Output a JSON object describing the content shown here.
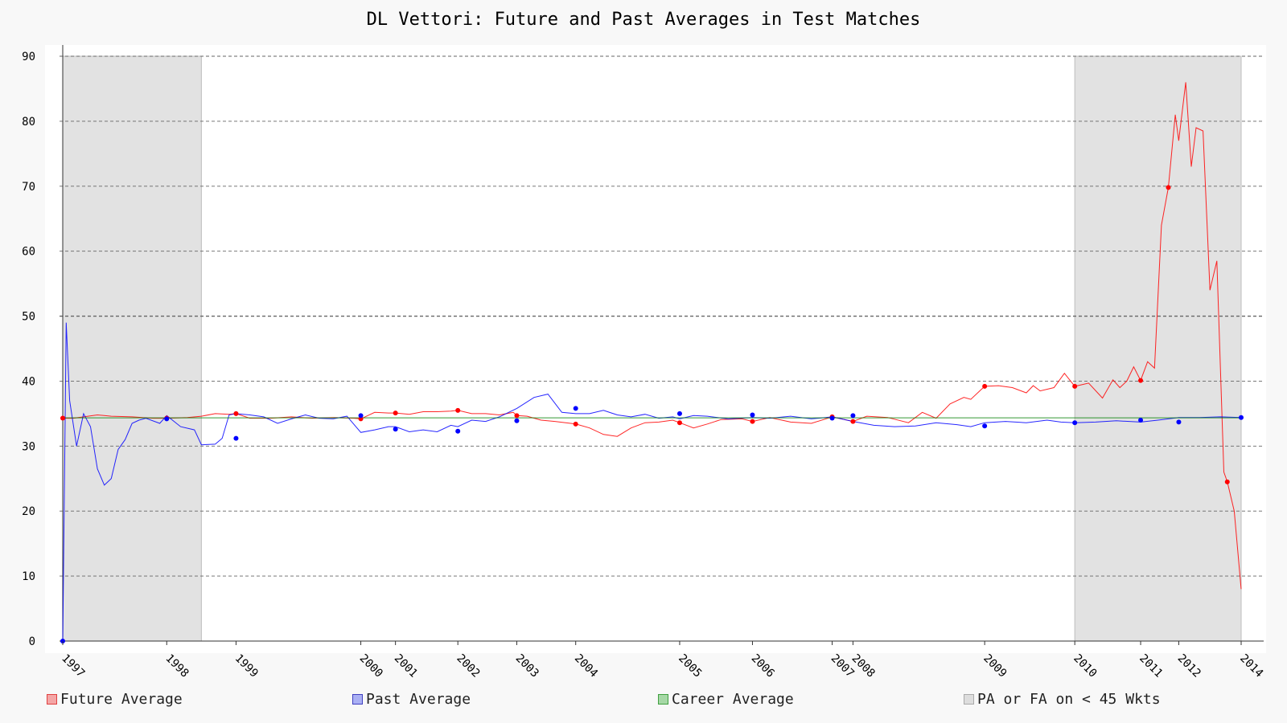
{
  "chart_data": {
    "type": "line",
    "title": "DL Vettori: Future and Past Averages in Test Matches",
    "xlabel": "",
    "ylabel": "",
    "xlim": [
      1997.0,
      2014.0
    ],
    "ylim": [
      0,
      90
    ],
    "yticks": [
      0,
      10,
      20,
      30,
      40,
      50,
      60,
      70,
      80,
      90
    ],
    "x_tick_labels": [
      {
        "label": "1997",
        "x": 1997.0
      },
      {
        "label": "1998",
        "x": 1998.5
      },
      {
        "label": "1999",
        "x": 1999.5
      },
      {
        "label": "2000",
        "x": 2001.3
      },
      {
        "label": "2001",
        "x": 2001.8
      },
      {
        "label": "2002",
        "x": 2002.7
      },
      {
        "label": "2003",
        "x": 2003.55
      },
      {
        "label": "2004",
        "x": 2004.4
      },
      {
        "label": "2005",
        "x": 2005.9
      },
      {
        "label": "2006",
        "x": 2006.95
      },
      {
        "label": "2007",
        "x": 2008.1
      },
      {
        "label": "2008",
        "x": 2008.4
      },
      {
        "label": "2009",
        "x": 2010.3
      },
      {
        "label": "2010",
        "x": 2011.6
      },
      {
        "label": "2011",
        "x": 2012.55
      },
      {
        "label": "2012",
        "x": 2013.1
      },
      {
        "label": "2014",
        "x": 2014.0
      }
    ],
    "grid": "horizontal dashed",
    "legend_position": "bottom",
    "shaded_regions": [
      {
        "x": [
          1997.0,
          1999.0
        ]
      },
      {
        "x": [
          2011.6,
          2014.0
        ]
      }
    ],
    "series": [
      {
        "name": "Future Average",
        "color": "#ff0000",
        "x": [
          1997.0,
          1997.15,
          1997.3,
          1997.5,
          1997.7,
          1998.0,
          1998.3,
          1998.5,
          1998.8,
          1999.0,
          1999.2,
          1999.4,
          1999.5,
          1999.7,
          2000.0,
          2000.3,
          2000.6,
          2000.9,
          2001.2,
          2001.3,
          2001.5,
          2001.7,
          2001.8,
          2002.0,
          2002.2,
          2002.4,
          2002.6,
          2002.7,
          2002.9,
          2003.1,
          2003.3,
          2003.5,
          2003.55,
          2003.7,
          2003.9,
          2004.1,
          2004.4,
          2004.6,
          2004.8,
          2005.0,
          2005.2,
          2005.4,
          2005.6,
          2005.8,
          2005.9,
          2006.1,
          2006.3,
          2006.5,
          2006.8,
          2006.95,
          2007.2,
          2007.5,
          2007.8,
          2008.1,
          2008.4,
          2008.6,
          2008.9,
          2009.2,
          2009.4,
          2009.6,
          2009.8,
          2010.0,
          2010.1,
          2010.3,
          2010.5,
          2010.7,
          2010.9,
          2011.0,
          2011.1,
          2011.3,
          2011.45,
          2011.6,
          2011.8,
          2012.0,
          2012.15,
          2012.25,
          2012.35,
          2012.45,
          2012.55,
          2012.65,
          2012.75,
          2012.85,
          2012.95,
          2013.05,
          2013.1,
          2013.2,
          2013.28,
          2013.35,
          2013.45,
          2013.55,
          2013.65,
          2013.75,
          2013.8,
          2013.9,
          2014.0
        ],
        "y": [
          34.3,
          34.3,
          34.5,
          34.8,
          34.6,
          34.5,
          34.3,
          34.3,
          34.4,
          34.6,
          35.0,
          34.9,
          35.0,
          34.3,
          34.3,
          34.5,
          34.3,
          34.4,
          34.3,
          34.2,
          35.2,
          35.1,
          35.1,
          34.9,
          35.3,
          35.3,
          35.4,
          35.5,
          35.0,
          35.0,
          34.8,
          35.2,
          34.7,
          34.6,
          34.0,
          33.8,
          33.4,
          32.8,
          31.8,
          31.5,
          32.8,
          33.6,
          33.7,
          34.0,
          33.6,
          32.8,
          33.4,
          34.1,
          34.2,
          33.8,
          34.4,
          33.7,
          33.5,
          34.5,
          33.8,
          34.6,
          34.4,
          33.6,
          35.2,
          34.3,
          36.5,
          37.5,
          37.2,
          39.2,
          39.3,
          39.0,
          38.2,
          39.3,
          38.5,
          39.0,
          41.2,
          39.2,
          39.7,
          37.4,
          40.2,
          39.0,
          40.0,
          42.2,
          40.1,
          43.0,
          42.0,
          64.0,
          69.8,
          81.0,
          77.0,
          86.0,
          73.0,
          79.0,
          78.5,
          54.0,
          58.5,
          26.0,
          24.5,
          20.0,
          8.0
        ]
      },
      {
        "name": "Past Average",
        "color": "#0000ff",
        "x": [
          1997.0,
          1997.05,
          1997.1,
          1997.2,
          1997.3,
          1997.4,
          1997.5,
          1997.6,
          1997.7,
          1997.8,
          1997.9,
          1998.0,
          1998.1,
          1998.2,
          1998.4,
          1998.5,
          1998.7,
          1998.9,
          1999.0,
          1999.2,
          1999.3,
          1999.4,
          1999.5,
          1999.7,
          1999.9,
          2000.1,
          2000.3,
          2000.5,
          2000.7,
          2000.9,
          2001.1,
          2001.3,
          2001.5,
          2001.7,
          2001.8,
          2002.0,
          2002.2,
          2002.4,
          2002.6,
          2002.7,
          2002.9,
          2003.1,
          2003.3,
          2003.55,
          2003.8,
          2004.0,
          2004.2,
          2004.4,
          2004.6,
          2004.8,
          2005.0,
          2005.2,
          2005.4,
          2005.6,
          2005.8,
          2005.9,
          2006.1,
          2006.3,
          2006.6,
          2006.95,
          2007.2,
          2007.5,
          2007.8,
          2008.1,
          2008.4,
          2008.7,
          2009.0,
          2009.3,
          2009.6,
          2009.9,
          2010.1,
          2010.3,
          2010.6,
          2010.9,
          2011.2,
          2011.4,
          2011.6,
          2011.9,
          2012.2,
          2012.55,
          2012.8,
          2013.1,
          2013.4,
          2013.7,
          2014.0
        ],
        "y": [
          0.0,
          49.0,
          37.0,
          30.0,
          35.0,
          33.0,
          26.5,
          24.0,
          25.0,
          29.5,
          31.0,
          33.5,
          34.0,
          34.3,
          33.5,
          34.7,
          33.0,
          32.5,
          30.2,
          30.3,
          31.2,
          34.8,
          35.0,
          34.8,
          34.5,
          33.5,
          34.2,
          34.8,
          34.3,
          34.2,
          34.6,
          32.1,
          32.5,
          33.0,
          33.0,
          32.2,
          32.5,
          32.2,
          33.2,
          33.0,
          34.0,
          33.8,
          34.5,
          35.8,
          37.5,
          38.0,
          35.2,
          35.0,
          35.0,
          35.5,
          34.8,
          34.5,
          34.9,
          34.3,
          34.5,
          34.2,
          34.7,
          34.6,
          34.2,
          34.4,
          34.3,
          34.6,
          34.2,
          34.5,
          33.8,
          33.2,
          33.0,
          33.1,
          33.6,
          33.3,
          33.0,
          33.6,
          33.8,
          33.6,
          34.0,
          33.7,
          33.6,
          33.7,
          33.9,
          33.7,
          34.0,
          34.4,
          34.4,
          34.5,
          34.4
        ]
      },
      {
        "name": "Career Average",
        "color": "#008000",
        "x": [
          1997.0,
          2014.0
        ],
        "y": [
          34.36,
          34.36
        ]
      }
    ],
    "markers": [
      {
        "series": "Future Average",
        "x": [
          1997.0,
          1998.5,
          1999.5,
          2001.3,
          2001.8,
          2002.7,
          2003.55,
          2004.4,
          2005.9,
          2006.95,
          2008.1,
          2008.4,
          2010.3,
          2011.6,
          2012.55,
          2012.95,
          2013.8
        ],
        "y": [
          34.3,
          34.3,
          35.0,
          34.2,
          35.1,
          35.5,
          34.7,
          33.4,
          33.6,
          33.8,
          34.5,
          33.8,
          39.2,
          39.2,
          40.1,
          69.8,
          24.5
        ]
      },
      {
        "series": "Past Average",
        "x": [
          1997.0,
          1998.5,
          1999.5,
          2001.3,
          2001.8,
          2002.7,
          2003.55,
          2004.4,
          2005.9,
          2006.95,
          2008.1,
          2008.4,
          2010.3,
          2011.6,
          2012.55,
          2013.1,
          2014.0
        ],
        "y": [
          0.0,
          34.2,
          31.2,
          34.7,
          32.6,
          32.3,
          33.9,
          35.8,
          35.0,
          34.8,
          34.3,
          34.7,
          33.1,
          33.6,
          34.0,
          33.7,
          34.4
        ]
      }
    ]
  },
  "legend": [
    {
      "label": "Future Average",
      "fill": "#f4a6a6",
      "stroke": "#e04040"
    },
    {
      "label": "Past Average",
      "fill": "#aab0f4",
      "stroke": "#4040c0"
    },
    {
      "label": "Career Average",
      "fill": "#a6d8a6",
      "stroke": "#40a040"
    },
    {
      "label": "PA or FA on < 45 Wkts",
      "fill": "#dddddd",
      "stroke": "#aaaaaa"
    }
  ]
}
